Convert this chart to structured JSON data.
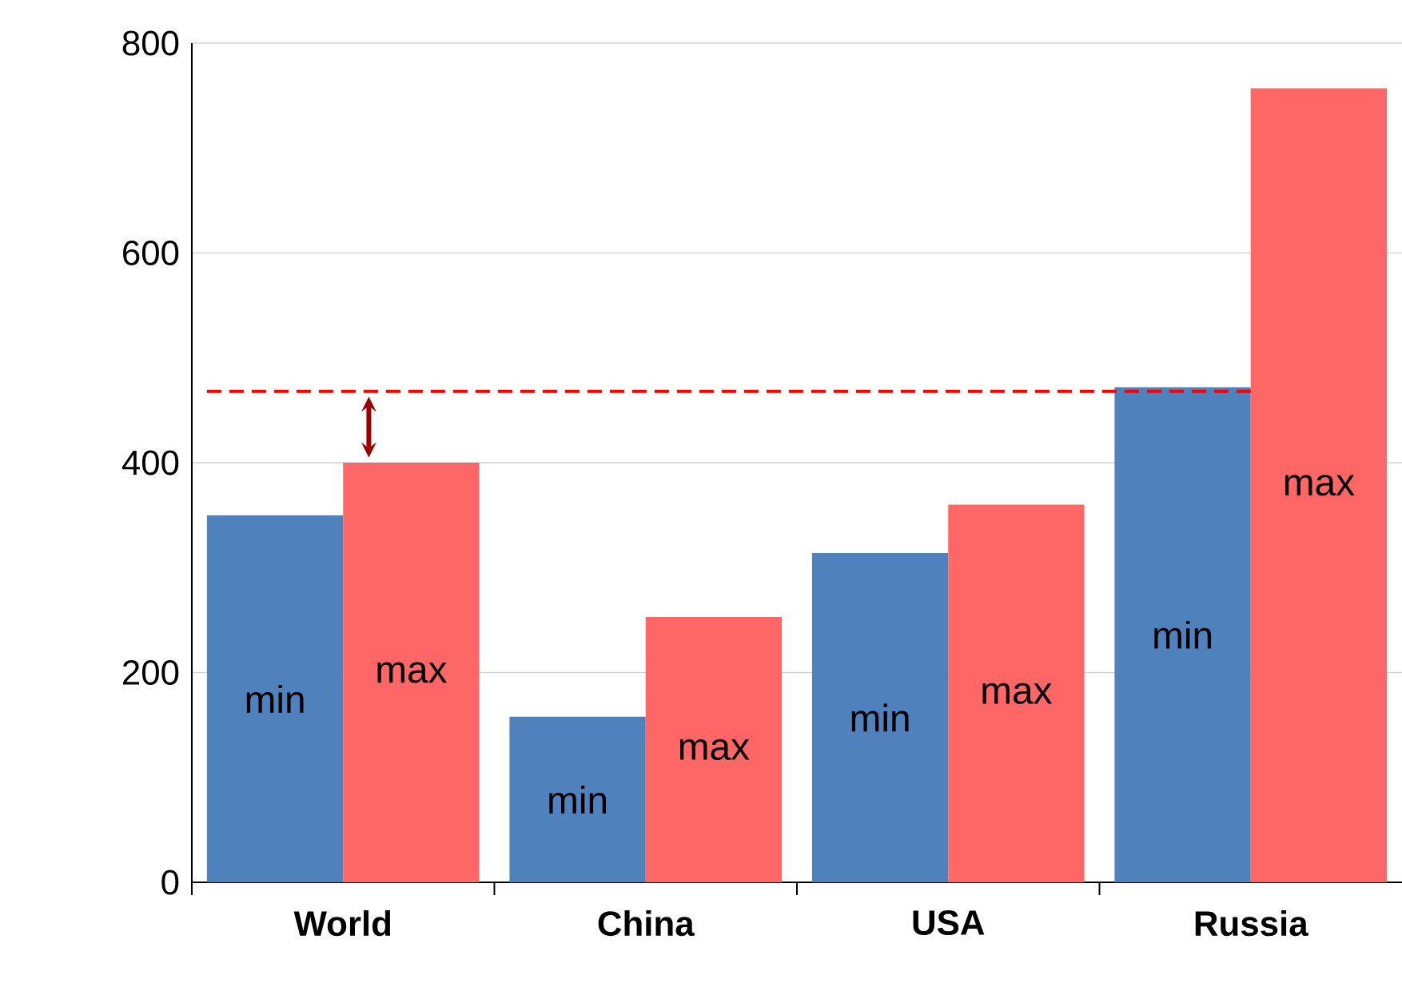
{
  "chart_data": {
    "type": "bar",
    "categories": [
      "World",
      "China",
      "USA",
      "Russia"
    ],
    "series": [
      {
        "name": "min",
        "color": "#4f81bd",
        "values": [
          350,
          158,
          314,
          472
        ]
      },
      {
        "name": "max",
        "color": "#ff6666",
        "values": [
          400,
          253,
          360,
          757
        ]
      }
    ],
    "ylim": [
      0,
      800
    ],
    "yticks": [
      0,
      200,
      400,
      600,
      800
    ],
    "grid": "y",
    "legend": false,
    "ref_lines": [
      {
        "axis": "y",
        "value": 468,
        "color": "#ff0000",
        "line_style": "dashed"
      }
    ]
  }
}
